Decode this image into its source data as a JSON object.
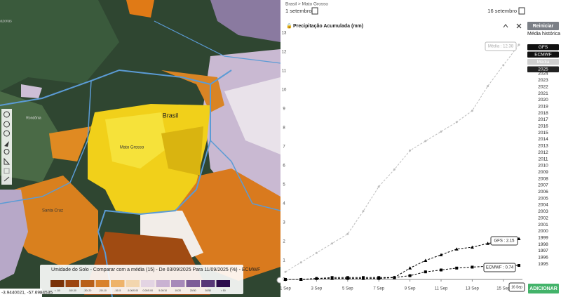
{
  "map": {
    "labels": [
      "Brasil",
      "Mato Grosso",
      "Rondônia",
      "Santa Cruz",
      "Amazonas"
    ],
    "legend_title": "Umidade do Solo - Comparar com a média (15) - De 03/09/2025 Para 11/09/2025 (%) - ECMWF",
    "legend_bins": [
      "< -50",
      "-50/-30",
      "-30/-20",
      "-20/-10",
      "-10/-5",
      "-5.00/0.00",
      "0.00/5.00",
      "5.00/10",
      "10/20",
      "20/30",
      "30/50",
      "> 50"
    ],
    "legend_colors": [
      "#7a3208",
      "#9c4510",
      "#b8601a",
      "#d9822c",
      "#eeb36a",
      "#f3d6ae",
      "#e3d4e3",
      "#c9b2d2",
      "#a788b9",
      "#7d5c98",
      "#573777",
      "#2c0c4c"
    ],
    "coordinates": "-3.9440021, -57.6984535"
  },
  "panel": {
    "breadcrumb": "Brasil > Mato Grosso",
    "start_date": "1 setembro",
    "end_date": "16 setembro",
    "reset_button": "Reiniciar",
    "add_button": "ADICIONAR",
    "legend_title": "Média histórica",
    "models": [
      "GFS",
      "ECMWF",
      "Média",
      "2025"
    ],
    "years": [
      "2024",
      "2023",
      "2022",
      "2021",
      "2020",
      "2019",
      "2018",
      "2017",
      "2016",
      "2015",
      "2014",
      "2013",
      "2012",
      "2011",
      "2010",
      "2009",
      "2008",
      "2007",
      "2006",
      "2005",
      "2004",
      "2003",
      "2002",
      "2001",
      "2000",
      "1999",
      "1998",
      "1997",
      "1996",
      "1995"
    ]
  },
  "chart_data": {
    "type": "line",
    "title": "Precipitação Acumulada (mm)",
    "categories": [
      "1 Sep",
      null,
      "3 Sep",
      null,
      "5 Sep",
      null,
      "7 Sep",
      null,
      "9 Sep",
      null,
      "11 Sep",
      null,
      "13 Sep",
      null,
      "15 Sep",
      null
    ],
    "series": [
      {
        "name": "Média",
        "color": "#bdbdbd",
        "marker": "circle",
        "values": [
          0.4,
          0.9,
          1.4,
          1.9,
          2.4,
          3.6,
          4.9,
          5.8,
          6.8,
          7.3,
          7.8,
          8.3,
          8.9,
          10.2,
          11.3,
          12.38
        ]
      },
      {
        "name": "GFS",
        "color": "#000000",
        "marker": "triangle",
        "values": [
          0,
          0,
          0.05,
          0.05,
          0.05,
          0.05,
          0.05,
          0.1,
          0.6,
          1.0,
          1.3,
          1.6,
          1.7,
          1.9,
          2.0,
          2.15
        ]
      },
      {
        "name": "ECMWF",
        "color": "#000000",
        "marker": "square",
        "values": [
          0,
          0,
          0.05,
          0.1,
          0.1,
          0.1,
          0.1,
          0.1,
          0.2,
          0.4,
          0.5,
          0.6,
          0.65,
          0.7,
          0.72,
          0.74
        ]
      }
    ],
    "annotations": [
      "Média : 12.38",
      "GFS : 2.15",
      "ECMWF : 0.74",
      "16 Sep"
    ],
    "ylim": [
      0,
      13
    ],
    "yticks": [
      0,
      1,
      2,
      3,
      4,
      5,
      6,
      7,
      8,
      9,
      10,
      11,
      12,
      13
    ],
    "grid": false
  }
}
